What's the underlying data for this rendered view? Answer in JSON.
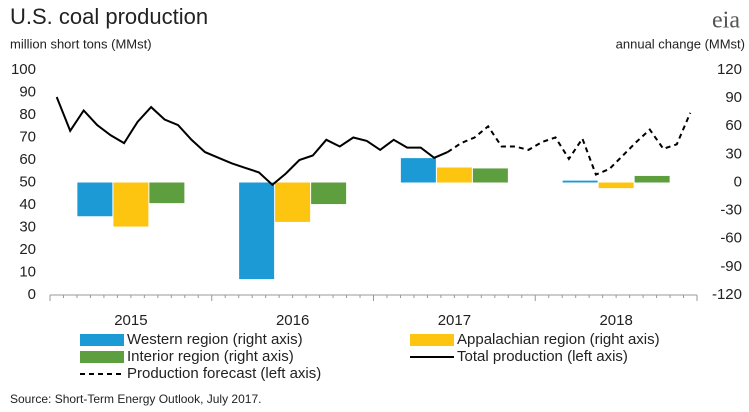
{
  "chart_data": {
    "type": "bar_line",
    "title": "U.S. coal production",
    "subtitle": "million short tons (MMst)",
    "y2_label": "annual change (MMst)",
    "logo": "eia",
    "source": "Source: Short-Term Energy Outlook, July 2017.",
    "categories": [
      "2015",
      "2016",
      "2017",
      "2018"
    ],
    "ylim": [
      0,
      100
    ],
    "yticks": [
      0,
      10,
      20,
      30,
      40,
      50,
      60,
      70,
      80,
      90,
      100
    ],
    "y2lim": [
      -120,
      120
    ],
    "y2ticks": [
      -120,
      -90,
      -60,
      -30,
      0,
      30,
      60,
      90,
      120
    ],
    "series": [
      {
        "name": "Western region (right axis)",
        "color": "#1b9ad6",
        "axis": "y2",
        "values": [
          -36,
          -103,
          26,
          2
        ]
      },
      {
        "name": "Appalachian region (right axis)",
        "color": "#fdc50f",
        "axis": "y2",
        "values": [
          -47,
          -42,
          16,
          -6
        ]
      },
      {
        "name": "Interior region (right axis)",
        "color": "#5d9e3f",
        "axis": "y2",
        "values": [
          -22,
          -23,
          15,
          7
        ]
      }
    ],
    "lines": [
      {
        "name": "Total production (left axis)",
        "color": "#000000",
        "dashed": false,
        "values": [
          88,
          73,
          82,
          75.5,
          71,
          67.5,
          77,
          83.5,
          78,
          75.5,
          69,
          63.5,
          61,
          58.5,
          56.5,
          54.5,
          49,
          54,
          60,
          62,
          69,
          66,
          70,
          68.5,
          64.5,
          69,
          65.5,
          65.5,
          61,
          63.5,
          null,
          null,
          null,
          null,
          null,
          null,
          null,
          null,
          null,
          null,
          null,
          null,
          null,
          null,
          null,
          null,
          null,
          null
        ]
      },
      {
        "name": "Production forecast (left axis)",
        "color": "#000000",
        "dashed": true,
        "values": [
          null,
          null,
          null,
          null,
          null,
          null,
          null,
          null,
          null,
          null,
          null,
          null,
          null,
          null,
          null,
          null,
          null,
          null,
          null,
          null,
          null,
          null,
          null,
          null,
          null,
          null,
          null,
          null,
          null,
          63.5,
          67.5,
          70,
          75,
          66,
          66,
          64.5,
          68,
          70,
          60.5,
          69.5,
          53.5,
          56,
          62,
          68,
          73.5,
          65,
          67,
          81
        ]
      }
    ]
  }
}
